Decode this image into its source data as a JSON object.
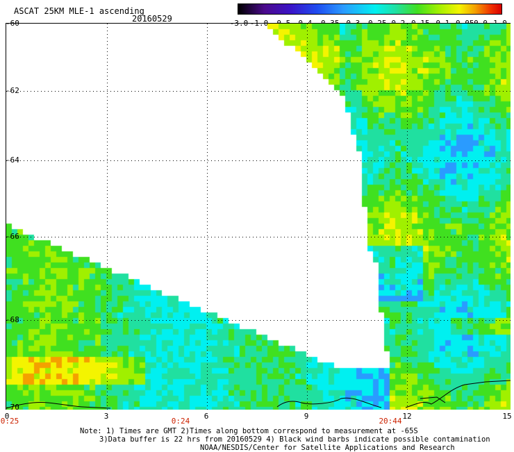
{
  "header": {
    "title": "ASCAT 25KM MLE-1 ascending",
    "date": "20160529"
  },
  "colorbar": {
    "ticks": [
      "-3.0",
      "-1.0",
      "-0.5",
      "-0.4",
      "-0.35",
      "-0.3",
      "-0.25",
      "-0.2",
      "-0.15",
      "-0.1",
      "-0.05",
      "0.0",
      "1.0"
    ]
  },
  "map": {
    "y_axis": {
      "labels": [
        "-60",
        "-62",
        "-64",
        "-66",
        "-68",
        "-70"
      ]
    },
    "x_axis": {
      "labels": [
        "0",
        "3",
        "6",
        "9",
        "12",
        "15"
      ]
    },
    "time_labels": [
      "0:25",
      "0:24",
      "20:44"
    ],
    "colors": {
      "background": "#ffffff",
      "grid": "#000000",
      "yellow": "#f4f400",
      "green": "#40e020",
      "cyan": "#00f0f0",
      "blue": "#1f4cf0",
      "orange": "#f4a000",
      "time_label": "#cc2200"
    }
  },
  "notes": {
    "line1": "Note: 1) Times are GMT 2)Times along bottom correspond to measurement at -65S",
    "line2": "3)Data buffer is 22 hrs from 20160529 4) Black wind barbs indicate possible contamination",
    "line3": "NOAA/NESDIS/Center for Satellite Applications and Research"
  }
}
